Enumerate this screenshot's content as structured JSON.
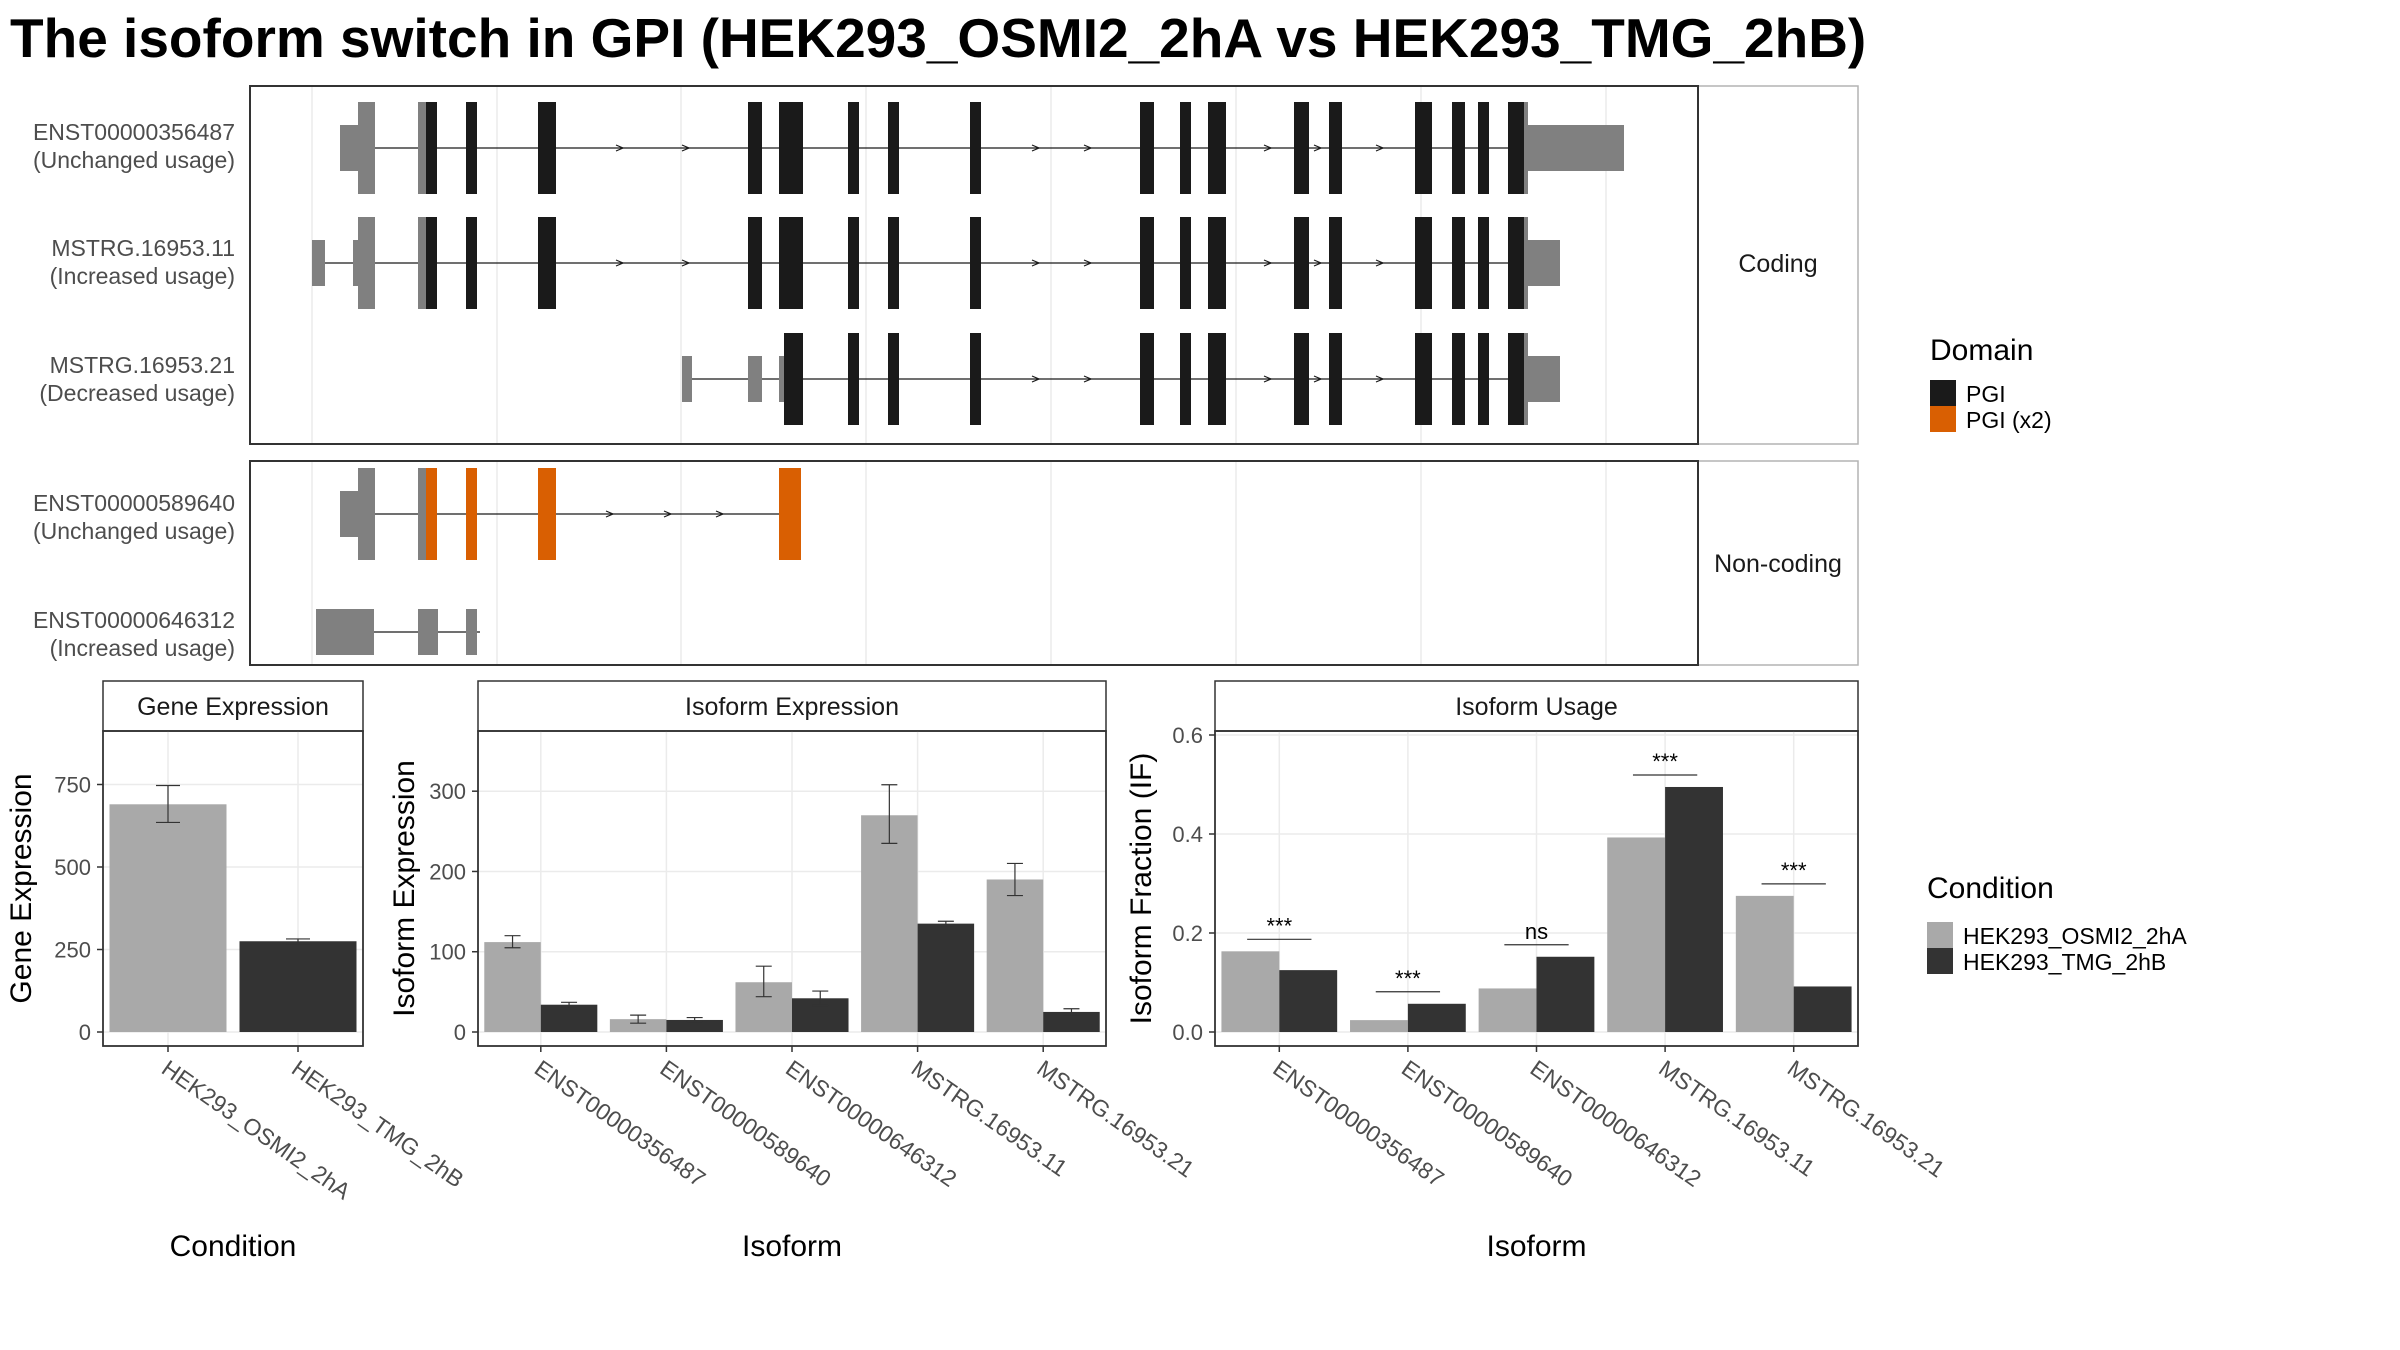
{
  "title": "The isoform switch in GPI (HEK293_OSMI2_2hA vs HEK293_TMG_2hB)",
  "colors": {
    "condition_a": "#a9a9a9",
    "condition_b": "#333333",
    "pgi": "#1a1a1a",
    "pgi_x2": "#d95f02",
    "noncoding_exon": "#808080",
    "panel_border": "#333333",
    "strip_border": "#b3b3b3",
    "grid": "#ebebeb"
  },
  "structure": {
    "facets": [
      {
        "label": "Coding",
        "isoforms": [
          {
            "id": "ENST00000356487",
            "usage": "(Unchanged usage)"
          },
          {
            "id": "MSTRG.16953.11",
            "usage": "(Increased usage)"
          },
          {
            "id": "MSTRG.16953.21",
            "usage": "(Decreased usage)"
          }
        ]
      },
      {
        "label": "Non-coding",
        "isoforms": [
          {
            "id": "ENST00000589640",
            "usage": "(Unchanged usage)"
          },
          {
            "id": "ENST00000646312",
            "usage": "(Increased usage)"
          }
        ]
      }
    ],
    "legend": {
      "title": "Domain",
      "items": [
        {
          "label": "PGI",
          "color": "#1a1a1a"
        },
        {
          "label": "PGI (x2)",
          "color": "#d95f02"
        }
      ]
    }
  },
  "chart_data": [
    {
      "type": "bar",
      "title": "Gene Expression",
      "xlabel": "Condition",
      "ylabel": "Gene Expression",
      "ylim": [
        0,
        900
      ],
      "yticks": [
        0,
        250,
        500,
        750
      ],
      "categories": [
        "HEK293_OSMI2_2hA",
        "HEK293_TMG_2hB"
      ],
      "values": [
        690,
        275
      ],
      "error_low": [
        635,
        268
      ],
      "error_high": [
        747,
        282
      ]
    },
    {
      "type": "bar",
      "title": "Isoform Expression",
      "xlabel": "Isoform",
      "ylabel": "Isoform Expression",
      "ylim": [
        0,
        370
      ],
      "yticks": [
        0,
        100,
        200,
        300
      ],
      "categories": [
        "ENST00000356487",
        "ENST00000589640",
        "ENST00000646312",
        "MSTRG.16953.11",
        "MSTRG.16953.21"
      ],
      "series": [
        {
          "name": "HEK293_OSMI2_2hA",
          "values": [
            112,
            16,
            62,
            270,
            190
          ],
          "error_low": [
            105,
            11,
            44,
            235,
            170
          ],
          "error_high": [
            120,
            21,
            82,
            308,
            210
          ]
        },
        {
          "name": "HEK293_TMG_2hB",
          "values": [
            34,
            15,
            42,
            135,
            25
          ],
          "error_low": [
            31,
            13,
            33,
            132,
            21
          ],
          "error_high": [
            37,
            18,
            51,
            138,
            29
          ]
        }
      ]
    },
    {
      "type": "bar",
      "title": "Isoform Usage",
      "xlabel": "Isoform",
      "ylabel": "Isoform Fraction (IF)",
      "ylim": [
        0,
        0.6
      ],
      "yticks": [
        "0.0",
        "0.2",
        "0.4",
        "0.6"
      ],
      "categories": [
        "ENST00000356487",
        "ENST00000589640",
        "ENST00000646312",
        "MSTRG.16953.11",
        "MSTRG.16953.21"
      ],
      "series": [
        {
          "name": "HEK293_OSMI2_2hA",
          "values": [
            0.163,
            0.024,
            0.088,
            0.393,
            0.275
          ]
        },
        {
          "name": "HEK293_TMG_2hB",
          "values": [
            0.125,
            0.057,
            0.152,
            0.495,
            0.092
          ]
        }
      ],
      "significance": [
        "***",
        "***",
        "ns",
        "***",
        "***"
      ]
    }
  ],
  "condition_legend": {
    "title": "Condition",
    "items": [
      {
        "label": "HEK293_OSMI2_2hA",
        "color": "#a9a9a9"
      },
      {
        "label": "HEK293_TMG_2hB",
        "color": "#333333"
      }
    ]
  }
}
